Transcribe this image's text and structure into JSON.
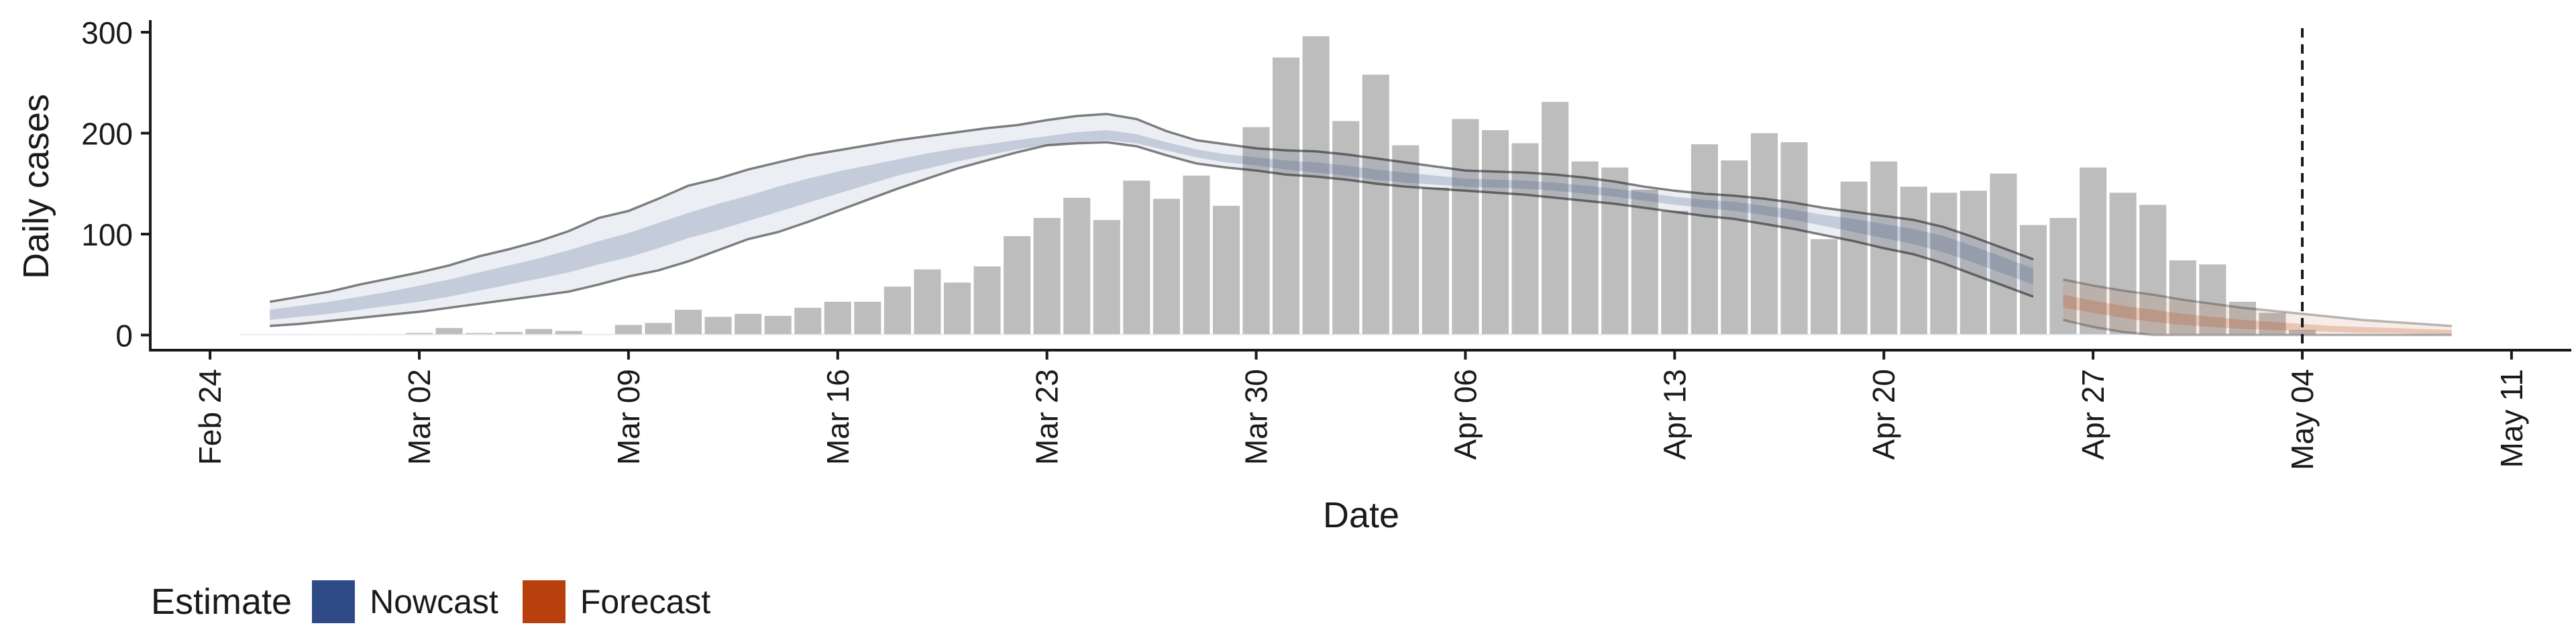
{
  "chart_data": {
    "type": "bar",
    "xlabel": "Date",
    "ylabel": "Daily cases",
    "ylim": [
      -15,
      312
    ],
    "yticks": [
      0,
      100,
      200,
      300
    ],
    "xlim": [
      "2020-02-22",
      "2020-05-13"
    ],
    "xticks": [
      "2020-02-24",
      "2020-03-02",
      "2020-03-09",
      "2020-03-16",
      "2020-03-23",
      "2020-03-30",
      "2020-04-06",
      "2020-04-13",
      "2020-04-20",
      "2020-04-27",
      "2020-05-04",
      "2020-05-11"
    ],
    "xtick_labels": [
      "Feb 24",
      "Mar 02",
      "Mar 09",
      "Mar 16",
      "Mar 23",
      "Mar 30",
      "Apr 06",
      "Apr 13",
      "Apr 20",
      "Apr 27",
      "May 04",
      "May 11"
    ],
    "vline": "2020-05-04",
    "bars": {
      "x": [
        "2020-02-27",
        "2020-02-28",
        "2020-02-29",
        "2020-03-01",
        "2020-03-02",
        "2020-03-03",
        "2020-03-04",
        "2020-03-05",
        "2020-03-06",
        "2020-03-07",
        "2020-03-08",
        "2020-03-09",
        "2020-03-10",
        "2020-03-11",
        "2020-03-12",
        "2020-03-13",
        "2020-03-14",
        "2020-03-15",
        "2020-03-16",
        "2020-03-17",
        "2020-03-18",
        "2020-03-19",
        "2020-03-20",
        "2020-03-21",
        "2020-03-22",
        "2020-03-23",
        "2020-03-24",
        "2020-03-25",
        "2020-03-26",
        "2020-03-27",
        "2020-03-28",
        "2020-03-29",
        "2020-03-30",
        "2020-03-31",
        "2020-04-01",
        "2020-04-02",
        "2020-04-03",
        "2020-04-04",
        "2020-04-05",
        "2020-04-06",
        "2020-04-07",
        "2020-04-08",
        "2020-04-09",
        "2020-04-10",
        "2020-04-11",
        "2020-04-12",
        "2020-04-13",
        "2020-04-14",
        "2020-04-15",
        "2020-04-16",
        "2020-04-17",
        "2020-04-18",
        "2020-04-19",
        "2020-04-20",
        "2020-04-21",
        "2020-04-22",
        "2020-04-23",
        "2020-04-24",
        "2020-04-25",
        "2020-04-26",
        "2020-04-27",
        "2020-04-28",
        "2020-04-29",
        "2020-04-30",
        "2020-05-01",
        "2020-05-02",
        "2020-05-03",
        "2020-05-04"
      ],
      "values": [
        1,
        0,
        1,
        1,
        2,
        7,
        2,
        3,
        6,
        4,
        1,
        10,
        12,
        25,
        18,
        21,
        19,
        27,
        33,
        33,
        48,
        65,
        52,
        68,
        98,
        116,
        136,
        114,
        153,
        135,
        158,
        128,
        206,
        275,
        296,
        212,
        258,
        188,
        146,
        214,
        203,
        190,
        231,
        172,
        166,
        144,
        123,
        189,
        173,
        200,
        191,
        95,
        152,
        172,
        147,
        141,
        143,
        160,
        109,
        116,
        166,
        141,
        129,
        74,
        70,
        33,
        22,
        5
      ],
      "color": "#bdbdbd"
    },
    "series": [
      {
        "name": "Nowcast",
        "color": "#3c5488",
        "x": [
          "2020-02-26",
          "2020-02-27",
          "2020-02-28",
          "2020-02-29",
          "2020-03-01",
          "2020-03-02",
          "2020-03-03",
          "2020-03-04",
          "2020-03-05",
          "2020-03-06",
          "2020-03-07",
          "2020-03-08",
          "2020-03-09",
          "2020-03-10",
          "2020-03-11",
          "2020-03-12",
          "2020-03-13",
          "2020-03-14",
          "2020-03-15",
          "2020-03-16",
          "2020-03-17",
          "2020-03-18",
          "2020-03-19",
          "2020-03-20",
          "2020-03-21",
          "2020-03-22",
          "2020-03-23",
          "2020-03-24",
          "2020-03-25",
          "2020-03-26",
          "2020-03-27",
          "2020-03-28",
          "2020-03-29",
          "2020-03-30",
          "2020-03-31",
          "2020-04-01",
          "2020-04-02",
          "2020-04-03",
          "2020-04-04",
          "2020-04-05",
          "2020-04-06",
          "2020-04-07",
          "2020-04-08",
          "2020-04-09",
          "2020-04-10",
          "2020-04-11",
          "2020-04-12",
          "2020-04-13",
          "2020-04-14",
          "2020-04-15",
          "2020-04-16",
          "2020-04-17",
          "2020-04-18",
          "2020-04-19",
          "2020-04-20",
          "2020-04-21",
          "2020-04-22",
          "2020-04-23",
          "2020-04-24",
          "2020-04-25"
        ],
        "upper90": [
          33,
          38,
          43,
          50,
          56,
          62,
          69,
          78,
          85,
          93,
          103,
          116,
          123,
          135,
          148,
          155,
          164,
          171,
          178,
          183,
          188,
          193,
          197,
          201,
          205,
          208,
          213,
          217,
          219,
          214,
          202,
          193,
          189,
          185,
          183,
          182,
          179,
          175,
          171,
          167,
          163,
          162,
          161,
          159,
          156,
          152,
          147,
          143,
          140,
          138,
          135,
          131,
          126,
          122,
          118,
          114,
          107,
          97,
          86,
          75
        ],
        "upper50": [
          25,
          29,
          33,
          38,
          43,
          49,
          55,
          62,
          69,
          76,
          84,
          93,
          101,
          111,
          121,
          130,
          138,
          147,
          155,
          162,
          168,
          174,
          180,
          185,
          189,
          193,
          197,
          201,
          203,
          199,
          191,
          184,
          179,
          176,
          173,
          171,
          168,
          164,
          161,
          158,
          155,
          154,
          153,
          151,
          148,
          145,
          141,
          137,
          134,
          132,
          128,
          124,
          119,
          115,
          110,
          105,
          98,
          88,
          77,
          66
        ],
        "lower50": [
          15,
          18,
          21,
          25,
          29,
          33,
          38,
          44,
          50,
          56,
          62,
          70,
          77,
          86,
          96,
          104,
          113,
          122,
          131,
          140,
          149,
          158,
          165,
          172,
          178,
          184,
          188,
          191,
          193,
          190,
          183,
          176,
          171,
          168,
          164,
          161,
          158,
          154,
          151,
          149,
          147,
          146,
          145,
          143,
          140,
          137,
          133,
          129,
          126,
          123,
          119,
          114,
          108,
          102,
          96,
          90,
          82,
          72,
          61,
          50
        ],
        "lower90": [
          9,
          11,
          14,
          17,
          20,
          23,
          27,
          31,
          35,
          39,
          43,
          50,
          58,
          64,
          73,
          84,
          95,
          102,
          112,
          123,
          134,
          145,
          155,
          165,
          173,
          181,
          188,
          190,
          191,
          187,
          178,
          170,
          166,
          163,
          159,
          157,
          154,
          150,
          147,
          145,
          143,
          141,
          139,
          136,
          133,
          130,
          126,
          122,
          118,
          115,
          110,
          105,
          99,
          93,
          86,
          80,
          71,
          60,
          49,
          38
        ]
      },
      {
        "name": "Forecast",
        "color": "#b5400e",
        "x": [
          "2020-04-26",
          "2020-04-27",
          "2020-04-28",
          "2020-04-29",
          "2020-04-30",
          "2020-05-01",
          "2020-05-02",
          "2020-05-03",
          "2020-05-04",
          "2020-05-05",
          "2020-05-06",
          "2020-05-07",
          "2020-05-08",
          "2020-05-09"
        ],
        "upper90": [
          55,
          49,
          44,
          40,
          35,
          31,
          27,
          24,
          21,
          18,
          15,
          13,
          11,
          9
        ],
        "upper50": [
          40,
          34,
          29,
          25,
          21,
          18,
          15,
          13,
          11,
          9,
          8,
          7,
          6,
          5
        ],
        "lower50": [
          27,
          22,
          17,
          13,
          10,
          8,
          6,
          5,
          4,
          3,
          2,
          2,
          1,
          1
        ],
        "lower90": [
          15,
          8,
          3,
          0,
          0,
          0,
          0,
          0,
          0,
          0,
          0,
          0,
          0,
          0
        ]
      }
    ],
    "lower_bound": {
      "start": "2020-02-25",
      "end": "2020-05-09",
      "upper": 1,
      "lower": 0
    }
  },
  "legend": {
    "title": "Estimate",
    "items": [
      {
        "label": "Nowcast",
        "color": "#2f4b87"
      },
      {
        "label": "Forecast",
        "color": "#b8400d"
      }
    ]
  }
}
